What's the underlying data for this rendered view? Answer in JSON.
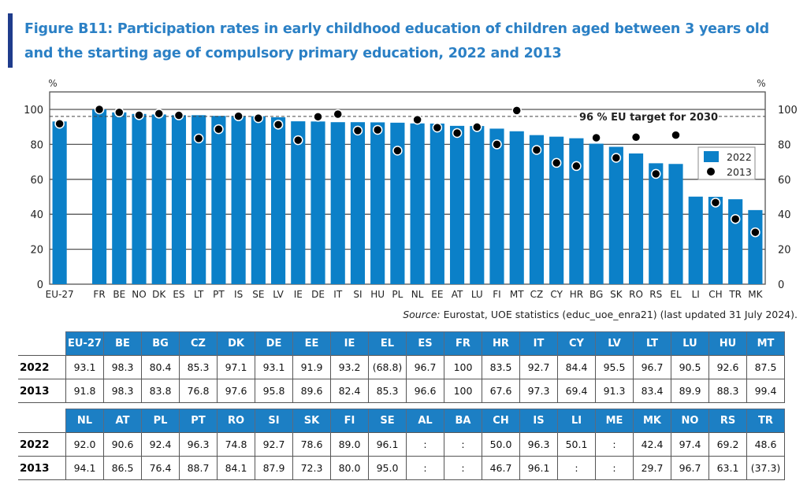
{
  "title": "Figure B11: Participation rates in early childhood education of children aged between 3 years old and the starting age of compulsory primary education, 2022 and 2013",
  "source_label": "Source:",
  "source_text": " Eurostat, UOE statistics (educ_uoe_enra21) (last updated 31 July 2024).",
  "colors": {
    "bar": "#0b80c8",
    "dot": "#000000",
    "title": "#2b80c5",
    "accent": "#1f3c8c",
    "table_header": "#1c7fc4"
  },
  "chart_data": {
    "type": "bar",
    "title": "Participation rates in early childhood education, 2022 and 2013",
    "ylabel_left": "%",
    "ylabel_right": "%",
    "ylim": [
      0,
      110
    ],
    "yticks": [
      0,
      20,
      40,
      60,
      80,
      100
    ],
    "grid": true,
    "legend_position": "right",
    "target_line": {
      "value": 96,
      "label": "96 % EU target for 2030"
    },
    "categories": [
      "EU-27",
      "",
      "FR",
      "BE",
      "NO",
      "DK",
      "ES",
      "LT",
      "PT",
      "IS",
      "SE",
      "LV",
      "IE",
      "DE",
      "IT",
      "SI",
      "HU",
      "PL",
      "NL",
      "EE",
      "AT",
      "LU",
      "FI",
      "MT",
      "CZ",
      "CY",
      "HR",
      "BG",
      "SK",
      "RO",
      "RS",
      "EL",
      "LI",
      "CH",
      "TR",
      "MK"
    ],
    "series": [
      {
        "name": "2022",
        "kind": "bar",
        "values": [
          93.1,
          null,
          100,
          98.3,
          97.4,
          97.1,
          96.7,
          96.7,
          96.3,
          96.3,
          96.1,
          95.5,
          93.2,
          93.1,
          92.7,
          92.7,
          92.6,
          92.4,
          92.0,
          91.9,
          90.6,
          90.5,
          89.0,
          87.5,
          85.3,
          84.4,
          83.5,
          80.4,
          78.6,
          74.8,
          69.2,
          68.8,
          50.1,
          50.0,
          48.6,
          42.4
        ]
      },
      {
        "name": "2013",
        "kind": "dot",
        "values": [
          91.8,
          null,
          100,
          98.3,
          96.7,
          97.6,
          96.6,
          83.4,
          88.7,
          96.1,
          95.0,
          91.3,
          82.4,
          95.8,
          97.3,
          87.9,
          88.3,
          76.4,
          94.1,
          89.6,
          86.5,
          89.9,
          80.0,
          99.4,
          76.8,
          69.4,
          67.6,
          83.8,
          72.3,
          84.1,
          63.1,
          85.3,
          null,
          46.7,
          37.3,
          29.7
        ]
      }
    ]
  },
  "table": {
    "row_labels": [
      "2022",
      "2013"
    ],
    "part1": {
      "headers": [
        "EU-27",
        "BE",
        "BG",
        "CZ",
        "DK",
        "DE",
        "EE",
        "IE",
        "EL",
        "ES",
        "FR",
        "HR",
        "IT",
        "CY",
        "LV",
        "LT",
        "LU",
        "HU",
        "MT"
      ],
      "r2022": [
        "93.1",
        "98.3",
        "80.4",
        "85.3",
        "97.1",
        "93.1",
        "91.9",
        "93.2",
        "(68.8)",
        "96.7",
        "100",
        "83.5",
        "92.7",
        "84.4",
        "95.5",
        "96.7",
        "90.5",
        "92.6",
        "87.5"
      ],
      "r2013": [
        "91.8",
        "98.3",
        "83.8",
        "76.8",
        "97.6",
        "95.8",
        "89.6",
        "82.4",
        "85.3",
        "96.6",
        "100",
        "67.6",
        "97.3",
        "69.4",
        "91.3",
        "83.4",
        "89.9",
        "88.3",
        "99.4"
      ]
    },
    "part2": {
      "headers": [
        "NL",
        "AT",
        "PL",
        "PT",
        "RO",
        "SI",
        "SK",
        "FI",
        "SE",
        "AL",
        "BA",
        "CH",
        "IS",
        "LI",
        "ME",
        "MK",
        "NO",
        "RS",
        "TR"
      ],
      "r2022": [
        "92.0",
        "90.6",
        "92.4",
        "96.3",
        "74.8",
        "92.7",
        "78.6",
        "89.0",
        "96.1",
        ":",
        ":",
        "50.0",
        "96.3",
        "50.1",
        ":",
        "42.4",
        "97.4",
        "69.2",
        "48.6"
      ],
      "r2013": [
        "94.1",
        "86.5",
        "76.4",
        "88.7",
        "84.1",
        "87.9",
        "72.3",
        "80.0",
        "95.0",
        ":",
        ":",
        "46.7",
        "96.1",
        ":",
        ":",
        "29.7",
        "96.7",
        "63.1",
        "(37.3)"
      ]
    }
  }
}
